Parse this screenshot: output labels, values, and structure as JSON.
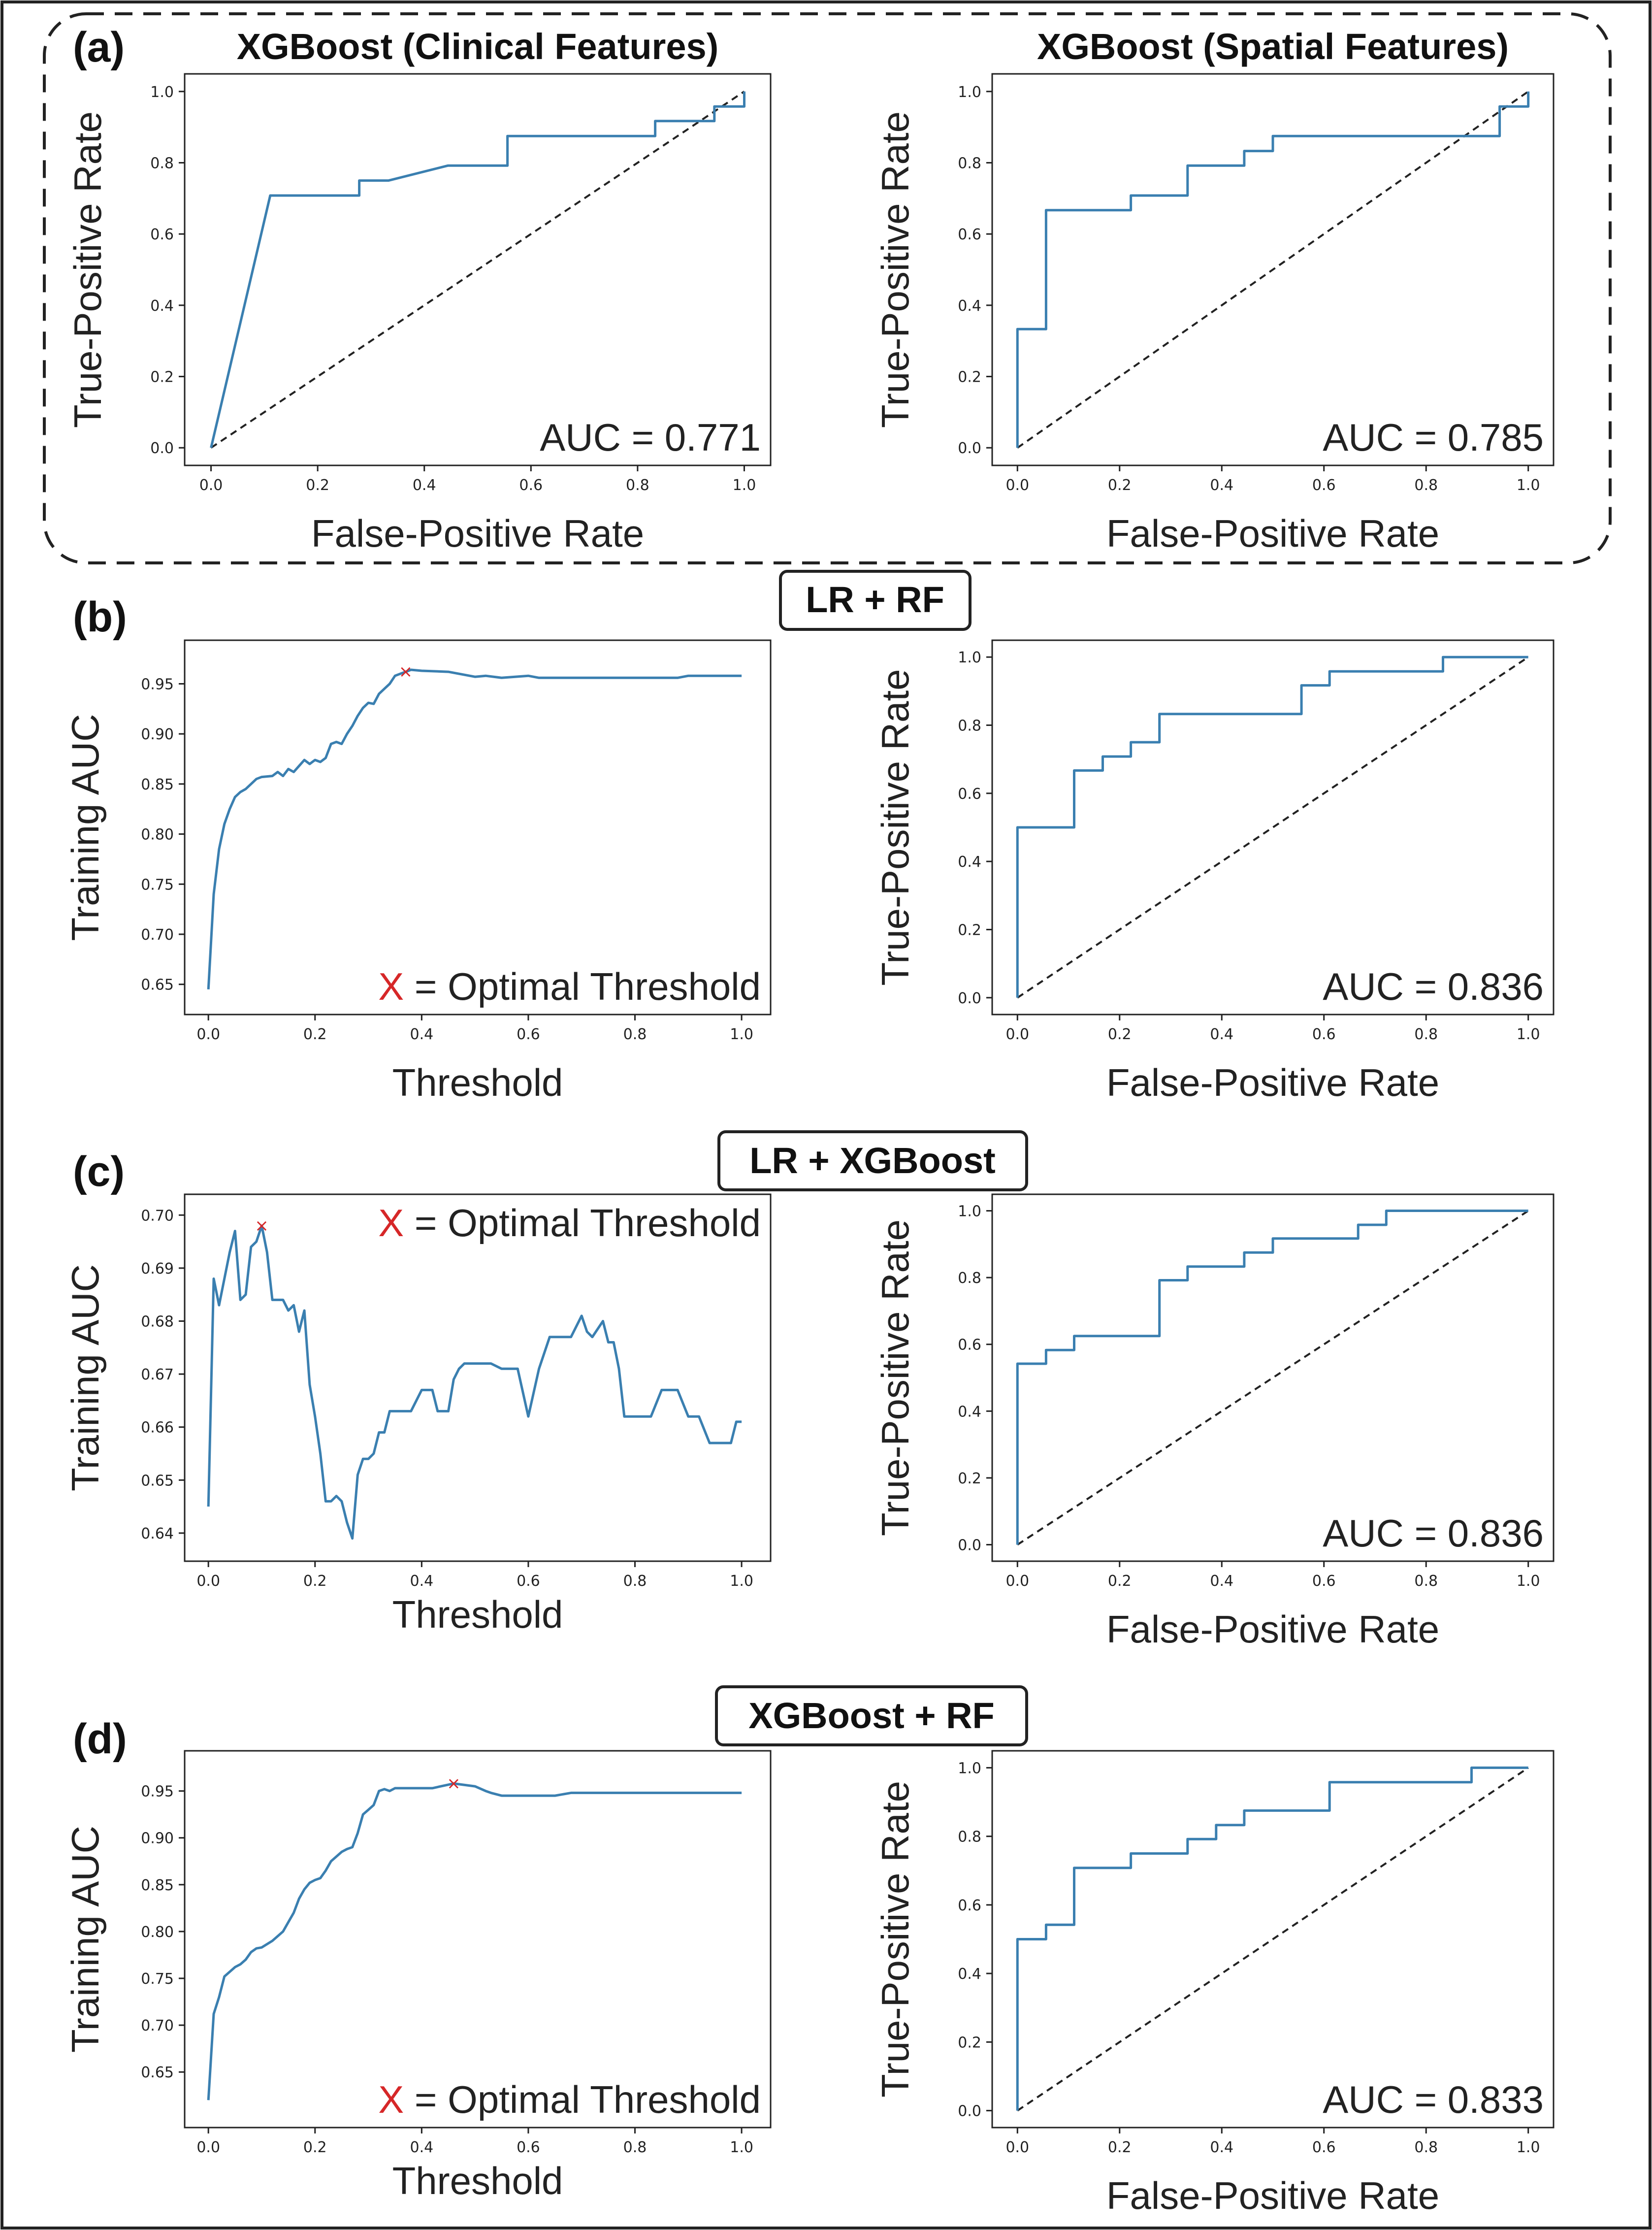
{
  "colors": {
    "curve": "#3a7fb0",
    "marker": "#d62728",
    "frame": "#222222"
  },
  "panels": [
    {
      "letter": "(a)"
    },
    {
      "letter": "(b)",
      "title": "LR + RF"
    },
    {
      "letter": "(c)",
      "title": "LR + XGBoost"
    },
    {
      "letter": "(d)",
      "title": "XGBoost + RF"
    }
  ],
  "chart_data": [
    {
      "id": "a-left",
      "type": "line",
      "title": "XGBoost (Clinical Features)",
      "xlabel": "False-Positive Rate",
      "ylabel": "True-Positive Rate",
      "xlim": [
        0,
        1
      ],
      "ylim": [
        0,
        1
      ],
      "xticks": [
        0.0,
        0.2,
        0.4,
        0.6,
        0.8,
        1.0
      ],
      "yticks": [
        0.0,
        0.2,
        0.4,
        0.6,
        0.8,
        1.0
      ],
      "annotation": "AUC = 0.771",
      "x": [
        0,
        0.111,
        0.278,
        0.278,
        0.333,
        0.444,
        0.556,
        0.556,
        0.833,
        0.833,
        0.944,
        0.944,
        1.0,
        1.0
      ],
      "y": [
        0,
        0.708,
        0.708,
        0.75,
        0.75,
        0.792,
        0.792,
        0.875,
        0.875,
        0.917,
        0.917,
        0.958,
        0.958,
        1.0
      ],
      "diagonal": true
    },
    {
      "id": "a-right",
      "type": "line",
      "title": "XGBoost (Spatial Features)",
      "xlabel": "False-Positive Rate",
      "ylabel": "True-Positive Rate",
      "xlim": [
        0,
        1
      ],
      "ylim": [
        0,
        1
      ],
      "xticks": [
        0.0,
        0.2,
        0.4,
        0.6,
        0.8,
        1.0
      ],
      "yticks": [
        0.0,
        0.2,
        0.4,
        0.6,
        0.8,
        1.0
      ],
      "annotation": "AUC = 0.785",
      "x": [
        0,
        0,
        0.056,
        0.056,
        0.222,
        0.222,
        0.333,
        0.333,
        0.444,
        0.444,
        0.5,
        0.5,
        0.944,
        0.944,
        1.0,
        1.0
      ],
      "y": [
        0,
        0.333,
        0.333,
        0.667,
        0.667,
        0.708,
        0.708,
        0.792,
        0.792,
        0.833,
        0.833,
        0.875,
        0.875,
        0.958,
        0.958,
        1.0
      ],
      "diagonal": true
    },
    {
      "id": "b-left",
      "type": "line",
      "xlabel": "Threshold",
      "ylabel": "Training AUC",
      "xlim": [
        0,
        1
      ],
      "ylim": [
        0.635,
        0.975
      ],
      "xticks": [
        0.0,
        0.2,
        0.4,
        0.6,
        0.8,
        1.0
      ],
      "yticks": [
        0.65,
        0.7,
        0.75,
        0.8,
        0.85,
        0.9,
        0.95
      ],
      "annotation": "X = Optimal Threshold",
      "x": [
        0,
        0.01,
        0.02,
        0.03,
        0.04,
        0.05,
        0.06,
        0.07,
        0.08,
        0.09,
        0.1,
        0.12,
        0.13,
        0.14,
        0.15,
        0.16,
        0.17,
        0.18,
        0.19,
        0.2,
        0.21,
        0.22,
        0.23,
        0.24,
        0.25,
        0.26,
        0.27,
        0.28,
        0.29,
        0.3,
        0.31,
        0.32,
        0.33,
        0.34,
        0.35,
        0.36,
        0.37,
        0.38,
        0.4,
        0.45,
        0.5,
        0.52,
        0.55,
        0.6,
        0.62,
        0.65,
        0.7,
        0.8,
        0.88,
        0.9,
        1.0
      ],
      "y": [
        0.645,
        0.74,
        0.785,
        0.81,
        0.825,
        0.837,
        0.842,
        0.845,
        0.85,
        0.855,
        0.857,
        0.858,
        0.862,
        0.858,
        0.865,
        0.862,
        0.868,
        0.874,
        0.87,
        0.874,
        0.872,
        0.876,
        0.89,
        0.892,
        0.89,
        0.9,
        0.908,
        0.918,
        0.926,
        0.931,
        0.93,
        0.94,
        0.945,
        0.95,
        0.958,
        0.96,
        0.962,
        0.964,
        0.963,
        0.962,
        0.957,
        0.958,
        0.956,
        0.958,
        0.956,
        0.956,
        0.956,
        0.956,
        0.956,
        0.958,
        0.958
      ],
      "optimal_point": [
        0.37,
        0.962
      ]
    },
    {
      "id": "b-right",
      "type": "line",
      "xlabel": "False-Positive Rate",
      "ylabel": "True-Positive Rate",
      "xlim": [
        0,
        1
      ],
      "ylim": [
        0,
        1
      ],
      "xticks": [
        0.0,
        0.2,
        0.4,
        0.6,
        0.8,
        1.0
      ],
      "yticks": [
        0.0,
        0.2,
        0.4,
        0.6,
        0.8,
        1.0
      ],
      "annotation": "AUC = 0.836",
      "x": [
        0,
        0,
        0.111,
        0.111,
        0.167,
        0.167,
        0.222,
        0.222,
        0.278,
        0.278,
        0.556,
        0.556,
        0.611,
        0.611,
        0.833,
        0.833,
        1.0
      ],
      "y": [
        0,
        0.5,
        0.5,
        0.667,
        0.667,
        0.708,
        0.708,
        0.75,
        0.75,
        0.833,
        0.833,
        0.917,
        0.917,
        0.958,
        0.958,
        1.0,
        1.0
      ],
      "diagonal": true
    },
    {
      "id": "c-left",
      "type": "line",
      "xlabel": "Threshold",
      "ylabel": "Training AUC",
      "xlim": [
        0,
        1
      ],
      "ylim": [
        0.6375,
        0.7005
      ],
      "xticks": [
        0.0,
        0.2,
        0.4,
        0.6,
        0.8,
        1.0
      ],
      "yticks": [
        0.64,
        0.65,
        0.66,
        0.67,
        0.68,
        0.69,
        0.7
      ],
      "annotation": "X = Optimal Threshold",
      "x": [
        0,
        0.01,
        0.02,
        0.03,
        0.04,
        0.05,
        0.06,
        0.07,
        0.08,
        0.09,
        0.1,
        0.11,
        0.12,
        0.13,
        0.14,
        0.15,
        0.16,
        0.17,
        0.18,
        0.19,
        0.2,
        0.21,
        0.22,
        0.23,
        0.24,
        0.25,
        0.26,
        0.27,
        0.28,
        0.29,
        0.3,
        0.31,
        0.32,
        0.33,
        0.34,
        0.35,
        0.36,
        0.37,
        0.38,
        0.4,
        0.42,
        0.43,
        0.44,
        0.45,
        0.46,
        0.47,
        0.48,
        0.5,
        0.53,
        0.55,
        0.58,
        0.6,
        0.62,
        0.64,
        0.66,
        0.68,
        0.7,
        0.71,
        0.72,
        0.74,
        0.75,
        0.76,
        0.77,
        0.78,
        0.8,
        0.83,
        0.85,
        0.88,
        0.9,
        0.92,
        0.94,
        0.96,
        0.98,
        0.99,
        1.0
      ],
      "y": [
        0.645,
        0.688,
        0.683,
        0.688,
        0.693,
        0.697,
        0.684,
        0.685,
        0.694,
        0.695,
        0.698,
        0.693,
        0.684,
        0.684,
        0.684,
        0.682,
        0.683,
        0.678,
        0.682,
        0.668,
        0.662,
        0.655,
        0.646,
        0.646,
        0.647,
        0.646,
        0.642,
        0.639,
        0.651,
        0.654,
        0.654,
        0.655,
        0.659,
        0.659,
        0.663,
        0.663,
        0.663,
        0.663,
        0.663,
        0.667,
        0.667,
        0.663,
        0.663,
        0.663,
        0.669,
        0.671,
        0.672,
        0.672,
        0.672,
        0.671,
        0.671,
        0.662,
        0.671,
        0.677,
        0.677,
        0.677,
        0.681,
        0.678,
        0.677,
        0.68,
        0.676,
        0.676,
        0.671,
        0.662,
        0.662,
        0.662,
        0.667,
        0.667,
        0.662,
        0.662,
        0.657,
        0.657,
        0.657,
        0.661,
        0.661
      ],
      "optimal_point": [
        0.1,
        0.698
      ]
    },
    {
      "id": "c-right",
      "type": "line",
      "xlabel": "False-Positive Rate",
      "ylabel": "True-Positive Rate",
      "xlim": [
        0,
        1
      ],
      "ylim": [
        0,
        1
      ],
      "xticks": [
        0.0,
        0.2,
        0.4,
        0.6,
        0.8,
        1.0
      ],
      "yticks": [
        0.0,
        0.2,
        0.4,
        0.6,
        0.8,
        1.0
      ],
      "annotation": "AUC = 0.836",
      "x": [
        0,
        0,
        0.056,
        0.056,
        0.111,
        0.111,
        0.278,
        0.278,
        0.333,
        0.333,
        0.444,
        0.444,
        0.5,
        0.5,
        0.667,
        0.667,
        0.722,
        0.722,
        1.0
      ],
      "y": [
        0,
        0.542,
        0.542,
        0.583,
        0.583,
        0.625,
        0.625,
        0.792,
        0.792,
        0.833,
        0.833,
        0.875,
        0.875,
        0.917,
        0.917,
        0.958,
        0.958,
        1.0,
        1.0
      ],
      "diagonal": true
    },
    {
      "id": "d-left",
      "type": "line",
      "xlabel": "Threshold",
      "ylabel": "Training AUC",
      "xlim": [
        0,
        1
      ],
      "ylim": [
        0.607,
        0.973
      ],
      "xticks": [
        0.0,
        0.2,
        0.4,
        0.6,
        0.8,
        1.0
      ],
      "yticks": [
        0.65,
        0.7,
        0.75,
        0.8,
        0.85,
        0.9,
        0.95
      ],
      "annotation": "X = Optimal Threshold",
      "x": [
        0,
        0.01,
        0.02,
        0.03,
        0.04,
        0.05,
        0.06,
        0.07,
        0.08,
        0.09,
        0.1,
        0.12,
        0.14,
        0.15,
        0.16,
        0.17,
        0.18,
        0.19,
        0.2,
        0.21,
        0.22,
        0.23,
        0.24,
        0.25,
        0.26,
        0.27,
        0.28,
        0.29,
        0.3,
        0.31,
        0.32,
        0.33,
        0.34,
        0.35,
        0.37,
        0.4,
        0.42,
        0.46,
        0.5,
        0.52,
        0.53,
        0.55,
        0.6,
        0.65,
        0.68,
        0.7,
        0.8,
        0.9,
        1.0
      ],
      "y": [
        0.62,
        0.712,
        0.73,
        0.752,
        0.757,
        0.762,
        0.765,
        0.77,
        0.778,
        0.782,
        0.783,
        0.79,
        0.8,
        0.81,
        0.82,
        0.835,
        0.845,
        0.852,
        0.855,
        0.857,
        0.865,
        0.875,
        0.88,
        0.885,
        0.888,
        0.89,
        0.905,
        0.925,
        0.93,
        0.935,
        0.95,
        0.952,
        0.95,
        0.953,
        0.953,
        0.953,
        0.953,
        0.958,
        0.955,
        0.95,
        0.948,
        0.945,
        0.945,
        0.945,
        0.948,
        0.948,
        0.948,
        0.948,
        0.948
      ],
      "optimal_point": [
        0.46,
        0.958
      ]
    },
    {
      "id": "d-right",
      "type": "line",
      "xlabel": "False-Positive Rate",
      "ylabel": "True-Positive Rate",
      "xlim": [
        0,
        1
      ],
      "ylim": [
        0,
        1
      ],
      "xticks": [
        0.0,
        0.2,
        0.4,
        0.6,
        0.8,
        1.0
      ],
      "yticks": [
        0.0,
        0.2,
        0.4,
        0.6,
        0.8,
        1.0
      ],
      "annotation": "AUC = 0.833",
      "x": [
        0,
        0,
        0.056,
        0.056,
        0.111,
        0.111,
        0.222,
        0.222,
        0.333,
        0.333,
        0.389,
        0.389,
        0.444,
        0.444,
        0.611,
        0.611,
        0.889,
        0.889,
        1.0
      ],
      "y": [
        0,
        0.5,
        0.5,
        0.542,
        0.542,
        0.708,
        0.708,
        0.75,
        0.75,
        0.792,
        0.792,
        0.833,
        0.833,
        0.875,
        0.875,
        0.958,
        0.958,
        1.0,
        1.0
      ],
      "diagonal": true
    }
  ]
}
